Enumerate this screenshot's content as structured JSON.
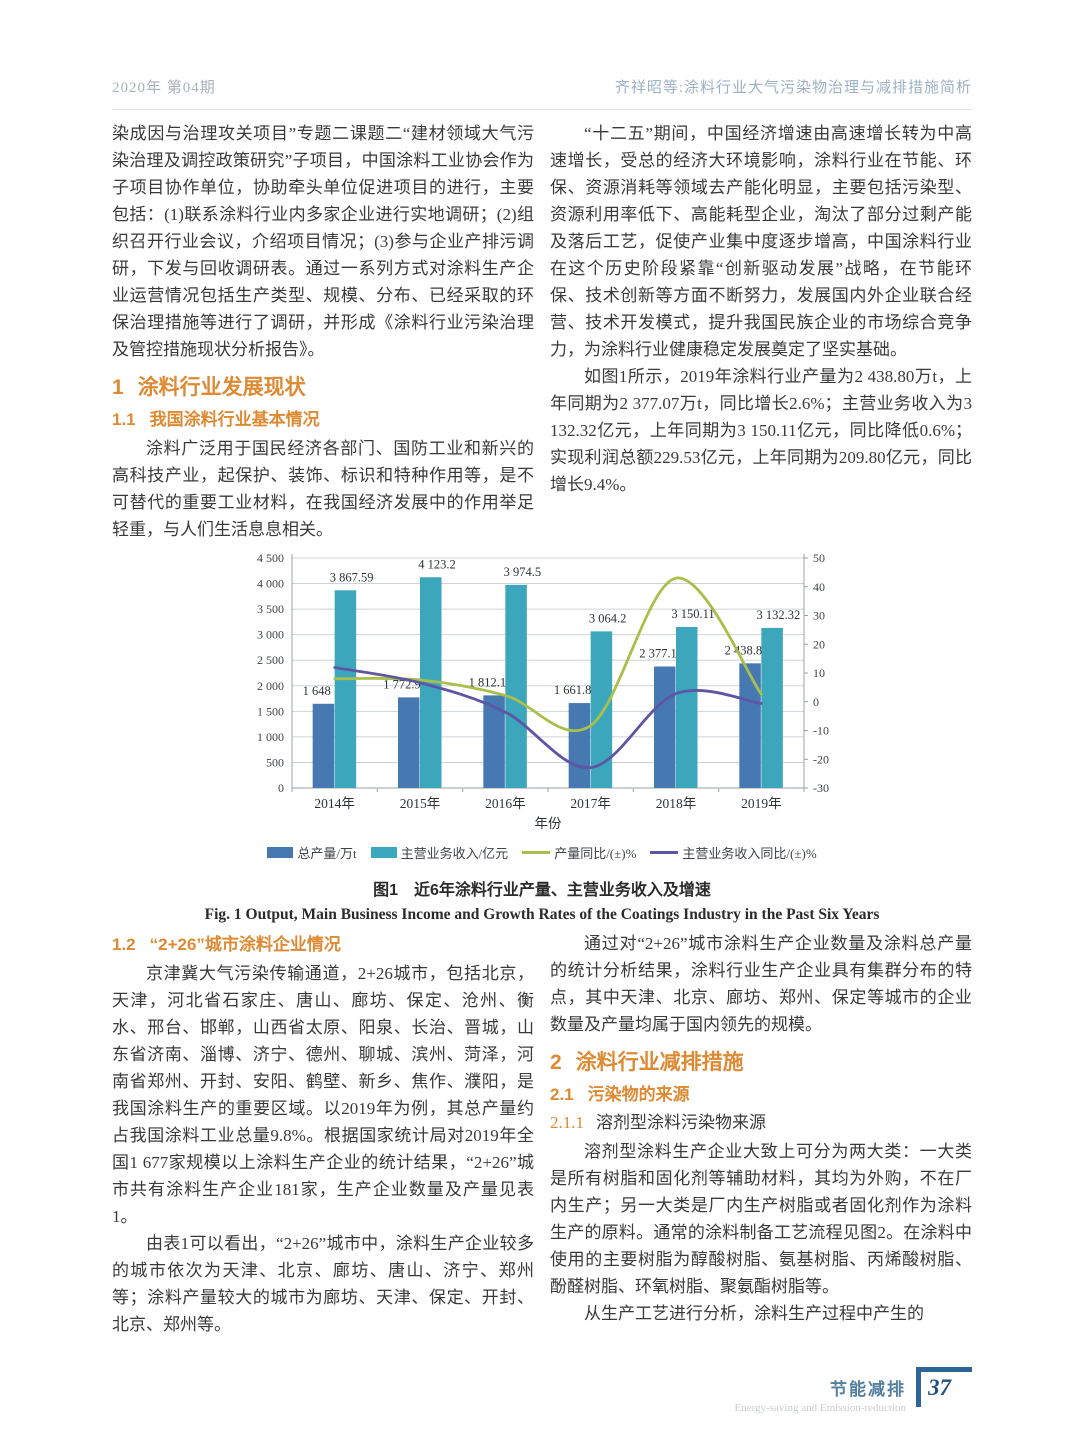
{
  "colors": {
    "heading_accent": "#DD8A33",
    "footer_blue": "#2F6496",
    "bar_output": "#4678B2",
    "bar_income": "#3BA6BC",
    "line_output_growth": "#A9BF4A",
    "line_income_growth": "#5F55A5"
  },
  "header": {
    "issue_info": "2020年  第04期",
    "running_title": "齐祥昭等:涂料行业大气污染物治理与减排措施简析"
  },
  "article": {
    "intro_paragraph": "染成因与治理攻关项目”专题二课题二“建材领域大气污染治理及调控政策研究”子项目，中国涂料工业协会作为子项目协作单位，协助牵头单位促进项目的进行，主要包括：(1)联系涂料行业内多家企业进行实地调研；(2)组织召开行业会议，介绍项目情况；(3)参与企业产排污调研，下发与回收调研表。通过一系列方式对涂料生产企业运营情况包括生产类型、规模、分布、已经采取的环保治理措施等进行了调研，并形成《涂料行业污染治理及管控措施现状分析报告》。",
    "section1": {
      "number": "1",
      "title": "涂料行业发展现状"
    },
    "section1_1": {
      "number": "1.1",
      "title": "我国涂料行业基本情况",
      "paragraph": "涂料广泛用于国民经济各部门、国防工业和新兴的高科技产业，起保护、装饰、标识和特种作用等，是不可替代的重要工业材料，在我国经济发展中的作用举足轻重，与人们生活息息相关。"
    },
    "right_paragraph1": "“十二五”期间，中国经济增速由高速增长转为中高速增长，受总的经济大环境影响，涂料行业在节能、环保、资源消耗等领域去产能化明显，主要包括污染型、资源利用率低下、高能耗型企业，淘汰了部分过剩产能及落后工艺，促使产业集中度逐步增高，中国涂料行业在这个历史阶段紧靠“创新驱动发展”战略，在节能环保、技术创新等方面不断努力，发展国内外企业联合经营、技术开发模式，提升我国民族企业的市场综合竞争力，为涂料行业健康稳定发展奠定了坚实基础。",
    "right_paragraph2": "如图1所示，2019年涂料行业产量为2 438.80万t，上年同期为2 377.07万t，同比增长2.6%；主营业务收入为3 132.32亿元，上年同期为3 150.11亿元，同比降低0.6%；实现利润总额229.53亿元，上年同期为209.80亿元，同比增长9.4%。",
    "section1_2": {
      "number": "1.2",
      "title": "“2+26”城市涂料企业情况",
      "paragraph1": "京津冀大气污染传输通道，2+26城市，包括北京，天津，河北省石家庄、唐山、廊坊、保定、沧州、衡水、邢台、邯郸，山西省太原、阳泉、长治、晋城，山东省济南、淄博、济宁、德州、聊城、滨州、菏泽，河南省郑州、开封、安阳、鹤壁、新乡、焦作、濮阳，是我国涂料生产的重要区域。以2019年为例，其总产量约占我国涂料工业总量9.8%。根据国家统计局对2019年全国1 677家规模以上涂料生产企业的统计结果，“2+26”城市共有涂料生产企业181家，生产企业数量及产量见表1。",
      "paragraph2": "由表1可以看出，“2+26”城市中，涂料生产企业较多的城市依次为天津、北京、廊坊、唐山、济宁、郑州等；涂料产量较大的城市为廊坊、天津、保定、开封、北京、郑州等。"
    },
    "right_paragraph3": "通过对“2+26”城市涂料生产企业数量及涂料总产量的统计分析结果，涂料行业生产企业具有集群分布的特点，其中天津、北京、廊坊、郑州、保定等城市的企业数量及产量均属于国内领先的规模。",
    "section2": {
      "number": "2",
      "title": "涂料行业减排措施"
    },
    "section2_1": {
      "number": "2.1",
      "title": "污染物的来源"
    },
    "section2_1_1": {
      "number": "2.1.1",
      "title": "溶剂型涂料污染物来源",
      "paragraph1": "溶剂型涂料生产企业大致上可分为两大类：一大类是所有树脂和固化剂等辅助材料，其均为外购，不在厂内生产；另一大类是厂内生产树脂或者固化剂作为涂料生产的原料。通常的涂料制备工艺流程见图2。在涂料中使用的主要树脂为醇酸树脂、氨基树脂、丙烯酸树脂、酚醛树脂、环氧树脂、聚氨酯树脂等。",
      "paragraph2": "从生产工艺进行分析，涂料生产过程中产生的"
    }
  },
  "figure1": {
    "caption_zh": "图1　近6年涂料行业产量、主营业务收入及增速",
    "caption_en": "Fig. 1   Output, Main Business Income and Growth Rates of the Coatings Industry in the Past Six Years"
  },
  "chart_data": {
    "type": "bar+line combo",
    "categories": [
      "2014年",
      "2015年",
      "2016年",
      "2017年",
      "2018年",
      "2019年"
    ],
    "xlabel": "年份",
    "left_axis": {
      "min": 0,
      "max": 4500,
      "step": 500
    },
    "right_axis": {
      "min": -30,
      "max": 50,
      "step": 10
    },
    "grid": true,
    "legend_position": "bottom",
    "bar_series": [
      {
        "name": "总产量/万t",
        "color": "#4678B2",
        "values": [
          1648,
          1772.9,
          1812.1,
          1661.8,
          2377.1,
          2438.8
        ],
        "labels": [
          "1 648",
          "1 772.9",
          "1 812.1",
          "1 661.8",
          "2 377.1",
          "2 438.8"
        ]
      },
      {
        "name": "主营业务收入/亿元",
        "color": "#3BA6BC",
        "values": [
          3867.59,
          4123.2,
          3974.5,
          3064.2,
          3150.11,
          3132.32
        ],
        "labels": [
          "3 867.59",
          "4 123.2",
          "3 974.5",
          "3 064.2",
          "3 150.11",
          "3 132.32"
        ]
      }
    ],
    "line_series": [
      {
        "name": "产量同比/(±)%",
        "color": "#A9BF4A",
        "axis": "right",
        "values": [
          8,
          7.6,
          2.2,
          -8.3,
          43,
          2.6
        ]
      },
      {
        "name": "主营业务收入同比/(±)%",
        "color": "#5F55A5",
        "axis": "right",
        "values": [
          11.9,
          6.6,
          -3.6,
          -22.9,
          2.8,
          -0.6
        ]
      }
    ]
  },
  "footer": {
    "label_zh": "节能减排",
    "label_en": "Energy-saving and Emission-reduction",
    "page_number": "37"
  }
}
